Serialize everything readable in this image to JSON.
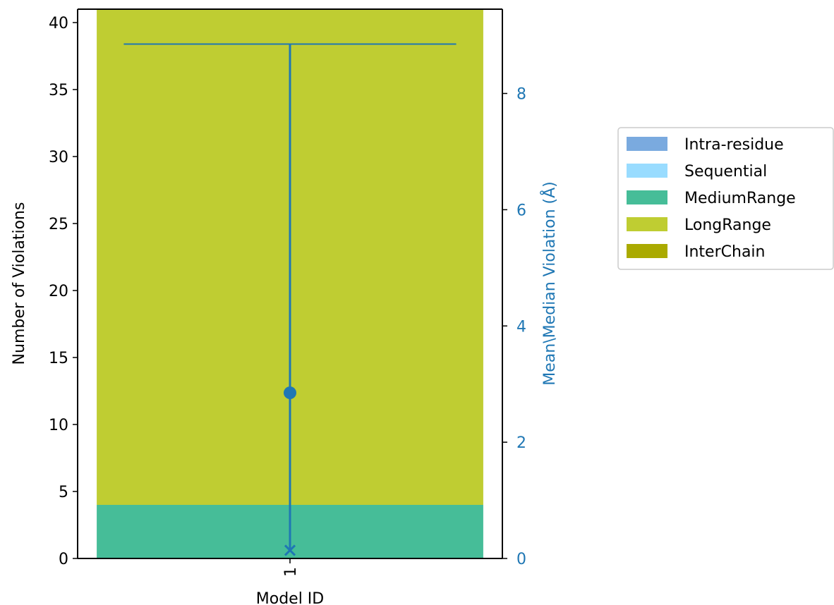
{
  "chart_data": {
    "type": "bar",
    "categories": [
      "1"
    ],
    "xlabel": "Model ID",
    "ylabel": "Number of Violations",
    "y2label": "Mean\\Median Violation (Å)",
    "ylim": [
      0,
      41
    ],
    "y2lim": [
      0,
      9.45
    ],
    "yticks": [
      0,
      5,
      10,
      15,
      20,
      25,
      30,
      35,
      40
    ],
    "y2ticks": [
      0,
      2,
      4,
      6,
      8
    ],
    "series": [
      {
        "name": "Intra-residue",
        "values": [
          0
        ],
        "color": "#7aaadf"
      },
      {
        "name": "Sequential",
        "values": [
          0
        ],
        "color": "#99dcff"
      },
      {
        "name": "MediumRange",
        "values": [
          4
        ],
        "color": "#46bd98"
      },
      {
        "name": "LongRange",
        "values": [
          38
        ],
        "color": "#bfcd32"
      },
      {
        "name": "InterChain",
        "values": [
          0
        ],
        "color": "#aaaa00"
      }
    ],
    "violation_stats": {
      "mean": [
        2.85
      ],
      "median": [
        0.14
      ],
      "max": [
        8.85
      ],
      "color": "#1f77b4"
    },
    "legend_position": "right",
    "grid": false
  }
}
